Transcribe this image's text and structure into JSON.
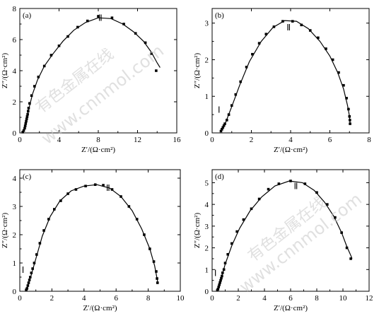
{
  "chart_data": [
    {
      "type": "scatter",
      "panel_label": "(a)",
      "xlabel": "Z′/(Ω·cm²)",
      "ylabel": "Z″/(Ω·cm²)",
      "xlim": [
        0,
        16
      ],
      "ylim": [
        0,
        8
      ],
      "xticks": [
        "0",
        "4",
        "8",
        "12",
        "16"
      ],
      "yticks": [
        "0",
        "2",
        "4",
        "6",
        "8"
      ],
      "regions": [
        {
          "label": "Ⅱ",
          "x": 8.2,
          "y": 7.2
        }
      ],
      "series": [
        {
          "points": [
            [
              0.3,
              0.05
            ],
            [
              0.4,
              0.15
            ],
            [
              0.5,
              0.3
            ],
            [
              0.55,
              0.45
            ],
            [
              0.6,
              0.6
            ],
            [
              0.65,
              0.75
            ],
            [
              0.7,
              0.9
            ],
            [
              0.75,
              1.05
            ],
            [
              0.8,
              1.2
            ],
            [
              0.85,
              1.4
            ],
            [
              0.9,
              1.6
            ],
            [
              1.0,
              1.9
            ],
            [
              1.2,
              2.4
            ],
            [
              1.5,
              3.0
            ],
            [
              1.9,
              3.6
            ],
            [
              2.5,
              4.3
            ],
            [
              3.2,
              5.0
            ],
            [
              4.0,
              5.6
            ],
            [
              4.9,
              6.2
            ],
            [
              5.9,
              6.8
            ],
            [
              6.9,
              7.2
            ],
            [
              8.0,
              7.5
            ],
            [
              9.4,
              7.4
            ],
            [
              10.6,
              7.0
            ],
            [
              11.8,
              6.4
            ],
            [
              12.8,
              5.8
            ],
            [
              13.4,
              5.1
            ],
            [
              13.9,
              4.0
            ]
          ],
          "fit": [
            [
              0.3,
              0.05
            ],
            [
              0.6,
              0.6
            ],
            [
              0.9,
              1.5
            ],
            [
              1.3,
              2.5
            ],
            [
              1.8,
              3.4
            ],
            [
              2.5,
              4.3
            ],
            [
              3.4,
              5.1
            ],
            [
              4.4,
              5.9
            ],
            [
              5.5,
              6.6
            ],
            [
              6.7,
              7.1
            ],
            [
              8.0,
              7.4
            ],
            [
              9.3,
              7.35
            ],
            [
              10.5,
              7.0
            ],
            [
              11.6,
              6.5
            ],
            [
              12.6,
              5.9
            ],
            [
              13.4,
              5.2
            ],
            [
              14.0,
              4.5
            ],
            [
              14.3,
              4.2
            ]
          ]
        }
      ]
    },
    {
      "type": "scatter",
      "panel_label": "(b)",
      "xlabel": "Z′/(Ω·cm²)",
      "ylabel": "Z″/(Ω·cm²)",
      "xlim": [
        0,
        8
      ],
      "ylim": [
        0,
        3.4
      ],
      "xticks": [
        "0",
        "2",
        "4",
        "6",
        "8"
      ],
      "yticks": [
        "0",
        "1",
        "2",
        "3"
      ],
      "regions": [
        {
          "label": "Ⅰ",
          "x": 0.35,
          "y": 0.55
        },
        {
          "label": "Ⅱ",
          "x": 3.9,
          "y": 2.8
        }
      ],
      "series": [
        {
          "points": [
            [
              0.45,
              0.05
            ],
            [
              0.5,
              0.1
            ],
            [
              0.55,
              0.15
            ],
            [
              0.6,
              0.2
            ],
            [
              0.65,
              0.25
            ],
            [
              0.75,
              0.35
            ],
            [
              0.85,
              0.5
            ],
            [
              1.0,
              0.75
            ],
            [
              1.2,
              1.05
            ],
            [
              1.45,
              1.4
            ],
            [
              1.75,
              1.8
            ],
            [
              2.05,
              2.15
            ],
            [
              2.4,
              2.45
            ],
            [
              2.75,
              2.7
            ],
            [
              3.15,
              2.9
            ],
            [
              3.6,
              3.05
            ],
            [
              4.1,
              3.05
            ],
            [
              4.55,
              2.95
            ],
            [
              5.0,
              2.8
            ],
            [
              5.4,
              2.6
            ],
            [
              5.8,
              2.3
            ],
            [
              6.15,
              2.0
            ],
            [
              6.45,
              1.65
            ],
            [
              6.7,
              1.3
            ],
            [
              6.85,
              0.95
            ],
            [
              6.95,
              0.65
            ],
            [
              7.0,
              0.45
            ],
            [
              7.02,
              0.35
            ],
            [
              7.03,
              0.25
            ]
          ],
          "fit": [
            [
              0.45,
              0.05
            ],
            [
              0.7,
              0.3
            ],
            [
              1.0,
              0.72
            ],
            [
              1.4,
              1.3
            ],
            [
              1.9,
              1.95
            ],
            [
              2.5,
              2.5
            ],
            [
              3.1,
              2.88
            ],
            [
              3.7,
              3.07
            ],
            [
              4.3,
              3.05
            ],
            [
              4.9,
              2.85
            ],
            [
              5.5,
              2.5
            ],
            [
              6.0,
              2.1
            ],
            [
              6.4,
              1.65
            ],
            [
              6.7,
              1.2
            ],
            [
              6.9,
              0.75
            ],
            [
              7.0,
              0.45
            ],
            [
              7.03,
              0.25
            ]
          ]
        }
      ]
    },
    {
      "type": "scatter",
      "panel_label": "(c)",
      "xlabel": "Z′/(Ω·cm²)",
      "ylabel": "Z″/(Ω·cm²)",
      "xlim": [
        0,
        10
      ],
      "ylim": [
        0,
        4.3
      ],
      "xticks": [
        "0",
        "2",
        "4",
        "6",
        "8",
        "10"
      ],
      "yticks": [
        "0",
        "1",
        "2",
        "3",
        "4"
      ],
      "regions": [
        {
          "label": "Ⅰ",
          "x": 0.2,
          "y": 0.65
        },
        {
          "label": "Ⅱ",
          "x": 5.5,
          "y": 3.55
        }
      ],
      "series": [
        {
          "points": [
            [
              0.4,
              0.05
            ],
            [
              0.45,
              0.1
            ],
            [
              0.5,
              0.2
            ],
            [
              0.55,
              0.3
            ],
            [
              0.6,
              0.4
            ],
            [
              0.65,
              0.5
            ],
            [
              0.72,
              0.65
            ],
            [
              0.8,
              0.8
            ],
            [
              0.9,
              1.0
            ],
            [
              1.05,
              1.3
            ],
            [
              1.25,
              1.7
            ],
            [
              1.5,
              2.15
            ],
            [
              1.8,
              2.55
            ],
            [
              2.15,
              2.9
            ],
            [
              2.55,
              3.2
            ],
            [
              3.0,
              3.45
            ],
            [
              3.5,
              3.6
            ],
            [
              4.1,
              3.72
            ],
            [
              4.7,
              3.77
            ],
            [
              5.2,
              3.75
            ],
            [
              5.75,
              3.6
            ],
            [
              6.3,
              3.35
            ],
            [
              6.8,
              3.0
            ],
            [
              7.3,
              2.55
            ],
            [
              7.75,
              2.0
            ],
            [
              8.1,
              1.5
            ],
            [
              8.35,
              1.05
            ],
            [
              8.5,
              0.7
            ],
            [
              8.55,
              0.45
            ],
            [
              8.58,
              0.3
            ]
          ],
          "fit": [
            [
              0.4,
              0.05
            ],
            [
              0.7,
              0.55
            ],
            [
              1.0,
              1.15
            ],
            [
              1.4,
              1.95
            ],
            [
              1.9,
              2.65
            ],
            [
              2.5,
              3.2
            ],
            [
              3.2,
              3.55
            ],
            [
              4.0,
              3.72
            ],
            [
              4.8,
              3.77
            ],
            [
              5.6,
              3.65
            ],
            [
              6.3,
              3.35
            ],
            [
              7.0,
              2.85
            ],
            [
              7.6,
              2.2
            ],
            [
              8.1,
              1.5
            ],
            [
              8.4,
              0.9
            ],
            [
              8.55,
              0.45
            ],
            [
              8.6,
              0.3
            ]
          ]
        }
      ]
    },
    {
      "type": "scatter",
      "panel_label": "(d)",
      "xlabel": "Z′/(Ω·cm²)",
      "ylabel": "Z″/(Ω·cm²)",
      "xlim": [
        0,
        12
      ],
      "ylim": [
        0,
        5.6
      ],
      "xticks": [
        "0",
        "2",
        "4",
        "6",
        "8",
        "10",
        "12"
      ],
      "yticks": [
        "0",
        "1",
        "2",
        "3",
        "4",
        "5"
      ],
      "regions": [
        {
          "label": "Ⅰ",
          "x": 0.25,
          "y": 0.7
        },
        {
          "label": "Ⅱ",
          "x": 6.4,
          "y": 4.7
        }
      ],
      "series": [
        {
          "points": [
            [
              0.4,
              0.05
            ],
            [
              0.45,
              0.1
            ],
            [
              0.5,
              0.2
            ],
            [
              0.55,
              0.3
            ],
            [
              0.6,
              0.4
            ],
            [
              0.65,
              0.5
            ],
            [
              0.7,
              0.6
            ],
            [
              0.75,
              0.7
            ],
            [
              0.8,
              0.85
            ],
            [
              0.9,
              1.0
            ],
            [
              1.0,
              1.3
            ],
            [
              1.2,
              1.7
            ],
            [
              1.5,
              2.2
            ],
            [
              1.9,
              2.75
            ],
            [
              2.4,
              3.3
            ],
            [
              3.0,
              3.8
            ],
            [
              3.6,
              4.25
            ],
            [
              4.3,
              4.7
            ],
            [
              5.1,
              4.95
            ],
            [
              6.0,
              5.08
            ],
            [
              7.1,
              4.95
            ],
            [
              8.0,
              4.55
            ],
            [
              8.8,
              4.0
            ],
            [
              9.4,
              3.4
            ],
            [
              9.9,
              2.7
            ],
            [
              10.3,
              2.0
            ],
            [
              10.6,
              1.5
            ]
          ],
          "fit": [
            [
              0.4,
              0.05
            ],
            [
              0.7,
              0.6
            ],
            [
              1.0,
              1.25
            ],
            [
              1.5,
              2.1
            ],
            [
              2.1,
              2.9
            ],
            [
              2.9,
              3.7
            ],
            [
              3.8,
              4.35
            ],
            [
              4.8,
              4.85
            ],
            [
              5.9,
              5.08
            ],
            [
              6.9,
              5.0
            ],
            [
              7.8,
              4.65
            ],
            [
              8.6,
              4.1
            ],
            [
              9.3,
              3.45
            ],
            [
              9.9,
              2.7
            ],
            [
              10.3,
              2.05
            ],
            [
              10.6,
              1.65
            ],
            [
              10.7,
              1.5
            ]
          ]
        }
      ]
    }
  ],
  "watermark": {
    "cn": "有色金属在线",
    "url": "www.cnnmol.com"
  }
}
